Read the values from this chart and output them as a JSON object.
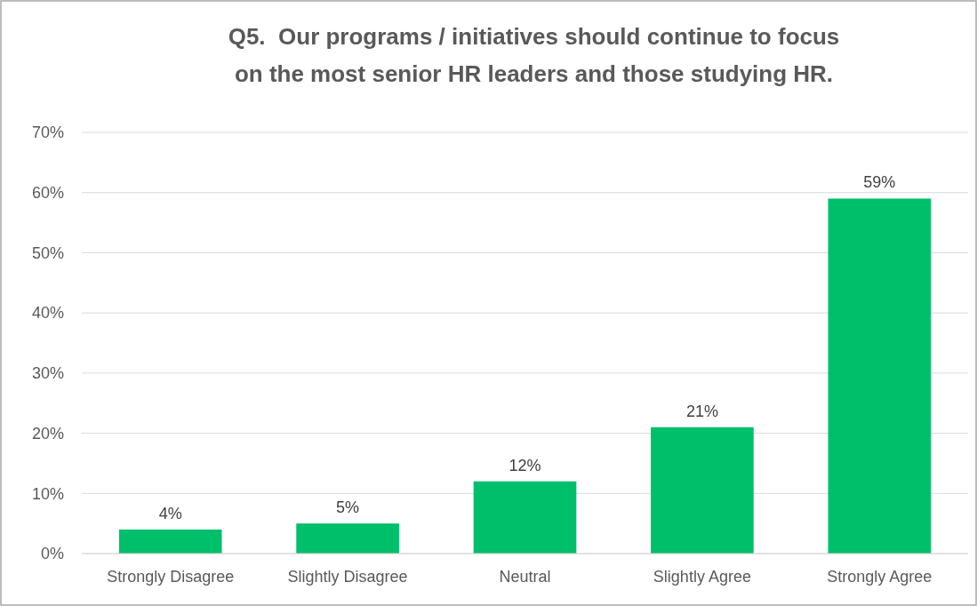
{
  "chart_data": {
    "type": "bar",
    "title": "Q5.  Our programs / initiatives should continue to focus\non the most senior HR leaders and those studying HR.",
    "categories": [
      "Strongly Disagree",
      "Slightly Disagree",
      "Neutral",
      "Slightly Agree",
      "Strongly Agree"
    ],
    "values": [
      4,
      5,
      12,
      21,
      59
    ],
    "value_labels": [
      "4%",
      "5%",
      "12%",
      "21%",
      "59%"
    ],
    "color": "#00bf6b",
    "ylim": [
      0,
      70
    ],
    "yticks": [
      {
        "value": 0,
        "label": "0%"
      },
      {
        "value": 10,
        "label": "10%"
      },
      {
        "value": 20,
        "label": "20%"
      },
      {
        "value": 30,
        "label": "30%"
      },
      {
        "value": 40,
        "label": "40%"
      },
      {
        "value": 50,
        "label": "50%"
      },
      {
        "value": 60,
        "label": "60%"
      },
      {
        "value": 70,
        "label": "70%"
      }
    ],
    "grid": "y"
  }
}
